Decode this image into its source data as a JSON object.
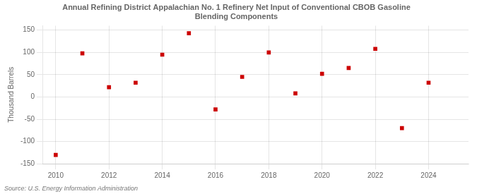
{
  "chart_data": {
    "type": "scatter",
    "title": "Annual Refining District Appalachian No. 1 Refinery Net Input of Conventional CBOB Gasoline\nBlending Components",
    "ylabel": "Thousand Barrels",
    "source": "Source: U.S. Energy Information Administration",
    "x": [
      2010,
      2011,
      2012,
      2013,
      2014,
      2015,
      2016,
      2017,
      2018,
      2019,
      2020,
      2021,
      2022,
      2023,
      2024
    ],
    "y": [
      -130,
      98,
      22,
      32,
      95,
      143,
      -28,
      45,
      100,
      8,
      52,
      65,
      108,
      -70,
      32
    ],
    "color": "#cc0000",
    "marker": "square",
    "xlim": [
      2009.5,
      2025.5
    ],
    "ylim": [
      -150,
      160
    ],
    "xticks": [
      2010,
      2012,
      2014,
      2016,
      2018,
      2020,
      2022,
      2024
    ],
    "yticks": [
      -150,
      -100,
      -50,
      0,
      50,
      100,
      150
    ],
    "grid": true
  }
}
